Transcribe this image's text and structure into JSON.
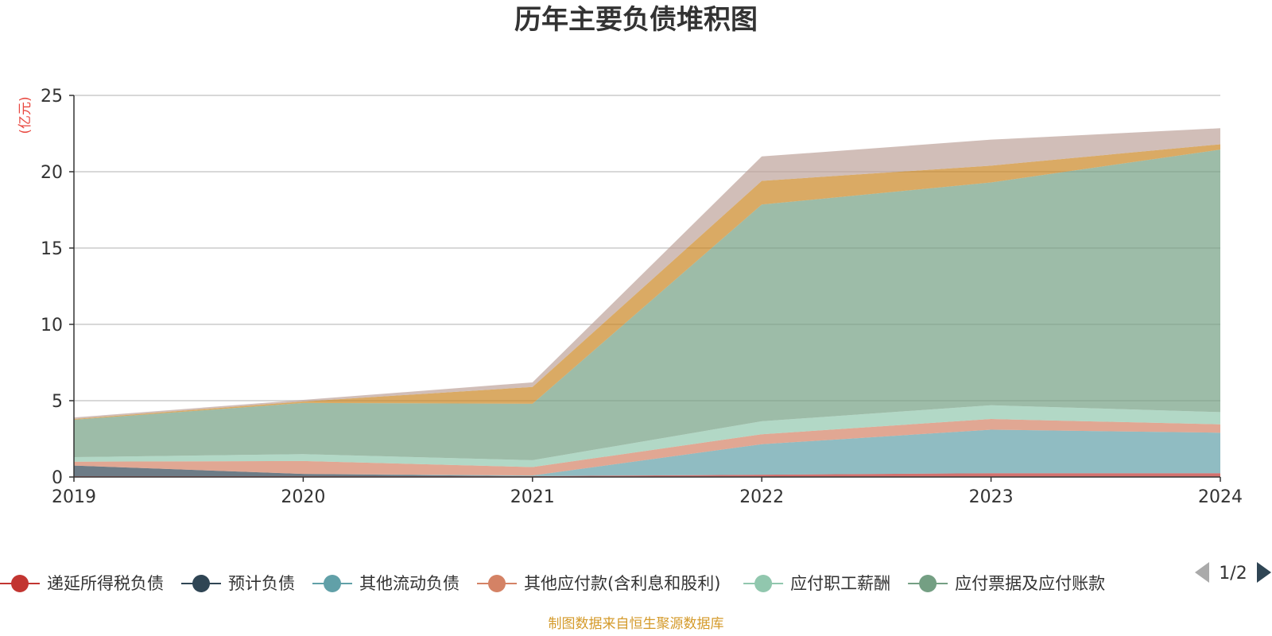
{
  "chart_data": {
    "type": "area",
    "stacked": true,
    "title": "历年主要负债堆积图",
    "unit_label": "(亿元)",
    "x": [
      "2019",
      "2020",
      "2021",
      "2022",
      "2023",
      "2024"
    ],
    "ylim": [
      0,
      25
    ],
    "y_ticks": [
      "0",
      "5",
      "10",
      "15",
      "20",
      "25"
    ],
    "grid": true,
    "series": [
      {
        "name": "递延所得税负债",
        "color": "#c23531",
        "values": [
          0.05,
          0.05,
          0.05,
          0.15,
          0.25,
          0.25
        ]
      },
      {
        "name": "预计负债",
        "color": "#2f4554",
        "values": [
          0.7,
          0.15,
          0.0,
          0.0,
          0.0,
          0.0
        ]
      },
      {
        "name": "其他流动负债",
        "color": "#61a0a8",
        "values": [
          0.0,
          0.0,
          0.05,
          2.0,
          2.85,
          2.65
        ]
      },
      {
        "name": "其他应付款(含利息和股利)",
        "color": "#d48265",
        "values": [
          0.25,
          0.85,
          0.55,
          0.65,
          0.7,
          0.55
        ]
      },
      {
        "name": "应付职工薪酬",
        "color": "#91c7ae",
        "values": [
          0.3,
          0.45,
          0.45,
          0.85,
          0.9,
          0.8
        ]
      },
      {
        "name": "应付票据及应付账款",
        "color": "#749f83",
        "values": [
          2.45,
          3.35,
          3.7,
          14.2,
          14.6,
          17.2
        ]
      },
      {
        "name": "",
        "color": "#ca8622",
        "values": [
          0.05,
          0.1,
          1.1,
          1.55,
          1.1,
          0.35
        ]
      },
      {
        "name": "",
        "color": "#bda29a",
        "values": [
          0.1,
          0.1,
          0.3,
          1.6,
          1.7,
          1.05
        ]
      }
    ],
    "legend": {
      "visible_entries": [
        "递延所得税负债",
        "预计负债",
        "其他流动负债",
        "其他应付款(含利息和股利)",
        "应付职工薪酬",
        "应付票据及应付账款"
      ],
      "page_indicator": "1/2",
      "placement": "bottom"
    },
    "source_note": "制图数据来自恒生聚源数据库"
  }
}
